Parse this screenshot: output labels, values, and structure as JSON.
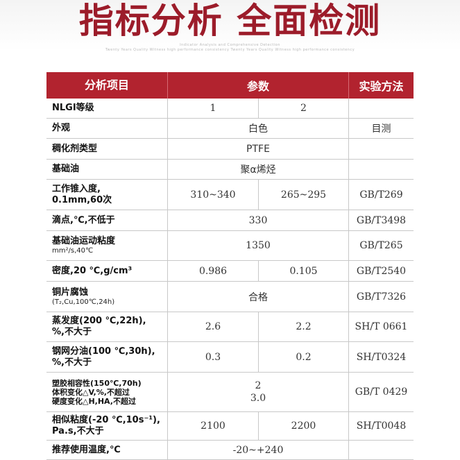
{
  "header": {
    "title": "指标分析  全面检测",
    "subtitle1": "Indicator Analysis and Comprehensive Detection",
    "subtitle2": "Twenty Years Quality Witness high performance consistency Twenty Years Quality Witness high performance consistency"
  },
  "table": {
    "columns": [
      "分析项目",
      "参数",
      "实验方法"
    ],
    "rows": [
      {
        "name": [
          "NLGI等级"
        ],
        "v1": "1",
        "v2": "2",
        "method": ""
      },
      {
        "name": [
          "外观"
        ],
        "merged": "白色",
        "method": "目测"
      },
      {
        "name": [
          "稠化剂类型"
        ],
        "merged": "PTFE",
        "method": ""
      },
      {
        "name": [
          "基础油"
        ],
        "merged": "聚α烯烃",
        "method": ""
      },
      {
        "name": [
          "工作锥入度,",
          "0.1mm,60次"
        ],
        "v1": "310~340",
        "v2": "265~295",
        "method": "GB/T269"
      },
      {
        "name": [
          "滴点,℃,不低于"
        ],
        "merged": "330",
        "method": "GB/T3498"
      },
      {
        "name": [
          "基础油运动粘度"
        ],
        "note": "mm²/s,40℃",
        "merged": "1350",
        "method": "GB/T265"
      },
      {
        "name": [
          "密度,20 ℃,g/cm³"
        ],
        "v1": "0.986",
        "v2": "0.105",
        "method": "GB/T2540"
      },
      {
        "name": [
          "铜片腐蚀"
        ],
        "note": "(T₂,Cu,100℃,24h)",
        "merged": "合格",
        "method": "GB/T7326"
      },
      {
        "name": [
          "蒸发度(200 ℃,22h),",
          "%,不大于"
        ],
        "v1": "2.6",
        "v2": "2.2",
        "method": "SH/T 0661"
      },
      {
        "name": [
          "钢网分油(100 ℃,30h),",
          "%,不大于"
        ],
        "v1": "0.3",
        "v2": "0.2",
        "method": "SH/T0324"
      },
      {
        "name": [
          "塑胶相容性(150℃,70h)",
          "体积变化△V,%,不超过",
          "硬度变化△H,HA,不超过"
        ],
        "merged_lines": [
          "2",
          "3.0"
        ],
        "method": "GB/T 0429"
      },
      {
        "name": [
          "相似粘度(-20 ℃,10s⁻¹),",
          "Pa.s,不大于"
        ],
        "v1": "2100",
        "v2": "2200",
        "method": "SH/T0048"
      },
      {
        "name": [
          "推荐使用温度,℃"
        ],
        "merged": "-20~+240",
        "method": ""
      }
    ]
  }
}
